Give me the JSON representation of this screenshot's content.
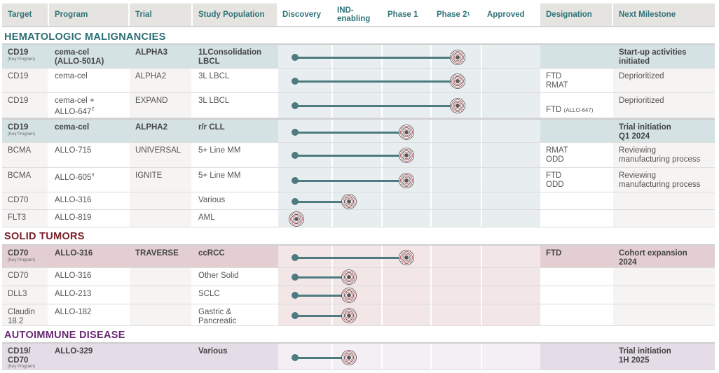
{
  "header": {
    "target": "Target",
    "program": "Program",
    "trial": "Trial",
    "study_population": "Study Population",
    "discovery": "Discovery",
    "ind_enabling": "IND-enabling",
    "phase1": "Phase 1",
    "phase2": "Phase 2",
    "phase2_sup": "1",
    "approved": "Approved",
    "designation": "Designation",
    "next_milestone": "Next Milestone"
  },
  "sections": [
    {
      "title": "HEMATOLOGIC MALIGNANCIES",
      "color": "#2a6e73"
    },
    {
      "title": "SOLID TUMORS",
      "color": "#7a2028"
    },
    {
      "title": "AUTOIMMUNE DISEASE",
      "color": "#6a2a74"
    }
  ],
  "key_program_label": "(Key Program)",
  "rows": [
    {
      "target": "CD19",
      "key": true,
      "program": "cema-cel",
      "program2": "(ALLO-501A)",
      "trial": "ALPHA3",
      "population": "1LConsolidation",
      "population2": "LBCL",
      "stage_end": 4,
      "designation": "",
      "designation2": "",
      "milestone": "Start-up activities",
      "milestone2": "initiated"
    },
    {
      "target": "CD19",
      "key": false,
      "program": "cema-cel",
      "program2": "",
      "trial": "ALPHA2",
      "population": "3L LBCL",
      "population2": "",
      "stage_end": 4,
      "designation": "FTD",
      "designation2": "RMAT",
      "milestone": "Deprioritized",
      "milestone2": ""
    },
    {
      "target": "CD19",
      "key": false,
      "program": "cema-cel +",
      "program2": "ALLO-647",
      "program2_sup": "2",
      "trial": "EXPAND",
      "population": "3L LBCL",
      "population2": "",
      "stage_end": 4,
      "designation": "",
      "designation2": "FTD",
      "designation2_small": "(ALLO-647)",
      "milestone": "Deprioritized",
      "milestone2": ""
    },
    {
      "target": "CD19",
      "key": true,
      "program": "cema-cel",
      "program2": "",
      "trial": "ALPHA2",
      "population": "r/r CLL",
      "population2": "",
      "stage_end": 3,
      "designation": "",
      "designation2": "",
      "milestone": "Trial initiation",
      "milestone2": "Q1 2024"
    },
    {
      "target": "BCMA",
      "key": false,
      "program": "ALLO-715",
      "program2": "",
      "trial": "UNIVERSAL",
      "population": "5+ Line MM",
      "population2": "",
      "stage_end": 3,
      "designation": "RMAT",
      "designation2": "ODD",
      "milestone": "Reviewing",
      "milestone2": "manufacturing process"
    },
    {
      "target": "BCMA",
      "key": false,
      "program": "ALLO-605",
      "program_sup": "3",
      "program2": "",
      "trial": "IGNITE",
      "population": "5+ Line MM",
      "population2": "",
      "stage_end": 3,
      "designation": "FTD",
      "designation2": "ODD",
      "milestone": "Reviewing",
      "milestone2": "manufacturing process"
    },
    {
      "target": "CD70",
      "key": false,
      "program": "ALLO-316",
      "program2": "",
      "trial": "",
      "population": "Various",
      "population2": "",
      "stage_end": 2,
      "designation": "",
      "designation2": "",
      "milestone": "",
      "milestone2": ""
    },
    {
      "target": "FLT3",
      "key": false,
      "program": "ALLO-819",
      "program2": "",
      "trial": "",
      "population": "AML",
      "population2": "",
      "stage_end": 1,
      "designation": "",
      "designation2": "",
      "milestone": "",
      "milestone2": ""
    },
    {
      "target": "CD70",
      "key": true,
      "program": "ALLO-316",
      "program2": "",
      "trial": "TRAVERSE",
      "population": "ccRCC",
      "population2": "",
      "stage_end": 3,
      "designation": "FTD",
      "designation2": "",
      "milestone": "Cohort expansion",
      "milestone2": "2024"
    },
    {
      "target": "CD70",
      "key": false,
      "program": "ALLO-316",
      "program2": "",
      "trial": "",
      "population": "Other Solid",
      "population2": "",
      "stage_end": 2,
      "designation": "",
      "designation2": "",
      "milestone": "",
      "milestone2": ""
    },
    {
      "target": "DLL3",
      "key": false,
      "program": "ALLO-213",
      "program2": "",
      "trial": "",
      "population": "SCLC",
      "population2": "",
      "stage_end": 2,
      "designation": "",
      "designation2": "",
      "milestone": "",
      "milestone2": ""
    },
    {
      "target": "Claudin",
      "target2": "18.2",
      "key": false,
      "program": "ALLO-182",
      "program2": "",
      "trial": "",
      "population": "Gastric &",
      "population2": "Pancreatic",
      "stage_end": 2,
      "designation": "",
      "designation2": "",
      "milestone": "",
      "milestone2": ""
    },
    {
      "target": "CD19/",
      "target2": "CD70",
      "key": true,
      "program": "ALLO-329",
      "program2": "",
      "trial": "",
      "population": "Various",
      "population2": "",
      "stage_end": 2,
      "designation": "",
      "designation2": "",
      "milestone": "Trial initiation",
      "milestone2": "1H 2025"
    }
  ],
  "colors": {
    "heme_key_bg": "#d5e2e4",
    "heme_stage_bg": "#e8eeef",
    "solid_key_bg": "#e3cfd2",
    "solid_stage_bg": "#f2e6e7",
    "auto_key_bg": "#e4dce6",
    "auto_stage_bg": "#f3eff4",
    "bar": "#4d7b80"
  }
}
